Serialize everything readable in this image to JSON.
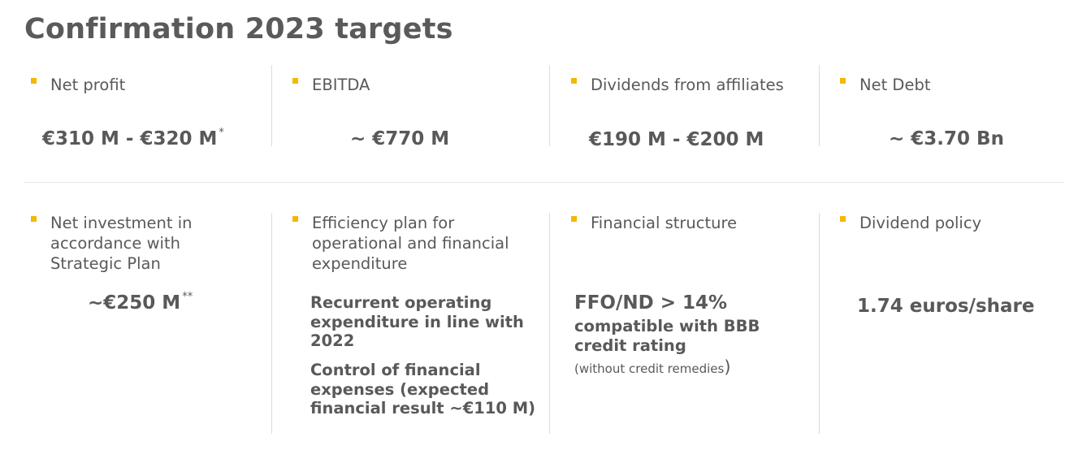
{
  "title": "Confirmation 2023 targets",
  "accent_color": "#f5b800",
  "row1": [
    {
      "label": "Net profit",
      "value": "€310 M - €320 M",
      "mark": "*"
    },
    {
      "label": "EBITDA",
      "value": "~ €770 M"
    },
    {
      "label": "Dividends from affiliates",
      "value": "€190 M - €200 M"
    },
    {
      "label": "Net Debt",
      "value": "~ €3.70 Bn"
    }
  ],
  "row2": [
    {
      "label": "Net investment in accordance with Strategic Plan",
      "value": "~€250 M",
      "mark": "**"
    },
    {
      "label": "Efficiency plan for operational and financial expenditure",
      "detail1": "Recurrent operating expenditure in line with 2022",
      "detail2": "Control of financial expenses (expected financial result ~€110 M)"
    },
    {
      "label": "Financial structure",
      "headline": "FFO/ND > 14%",
      "detail": "compatible with BBB credit rating",
      "note_open": "(",
      "note": "without credit remedies",
      "note_close": ")"
    },
    {
      "label": "Dividend policy",
      "value": "1.74 euros/share"
    }
  ]
}
